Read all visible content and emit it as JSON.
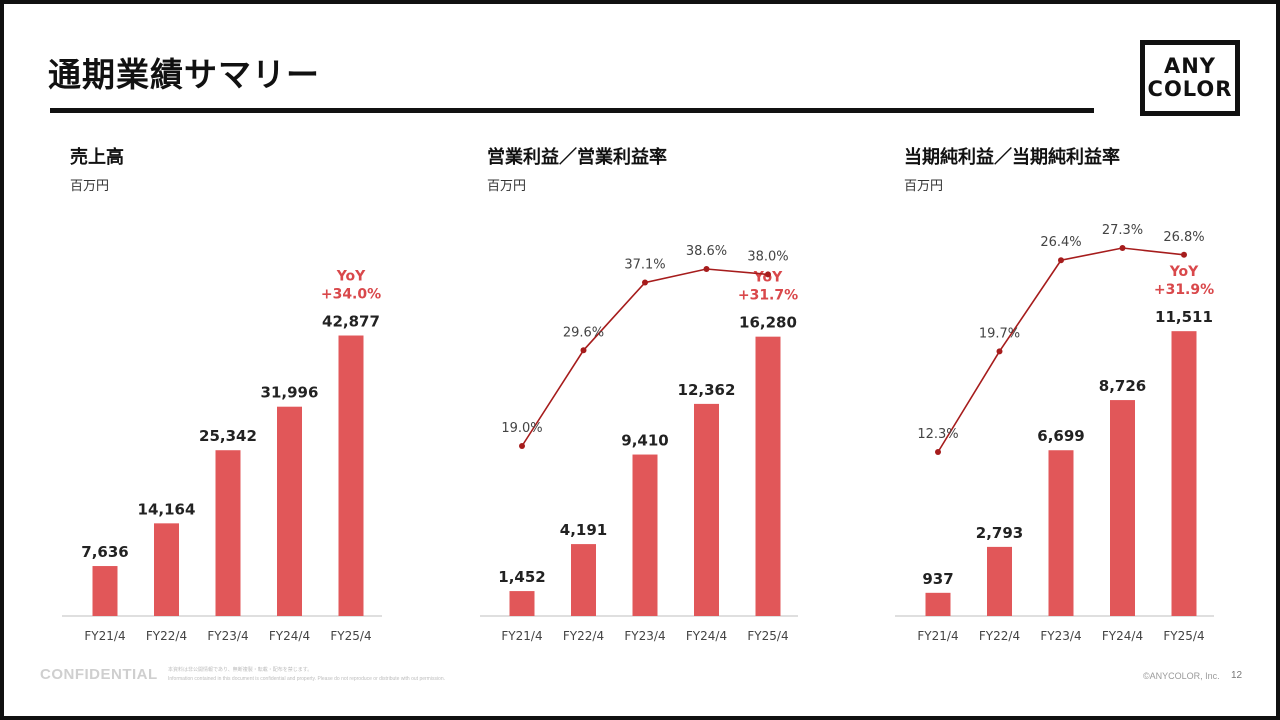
{
  "page": {
    "title": "通期業績サマリー",
    "logo_line1": "ANY",
    "logo_line2": "COLOR"
  },
  "footer": {
    "confidential": "CONFIDENTIAL",
    "note_jp": "本資料は非公開情報であり、無断複製・転載・配布を禁じます。",
    "note_en": "Information contained in this document is confidential and property. Please do not reproduce or distribute with out permission.",
    "copyright": "©ANYCOLOR, Inc.",
    "page_number": "12"
  },
  "colors": {
    "bar": "#e15759",
    "line": "#a61c1c",
    "yoy": "#d9484b",
    "axis": "#bfbfbf"
  },
  "chart_data": [
    {
      "type": "bar",
      "title": "売上高",
      "unit": "百万円",
      "categories": [
        "FY21/4",
        "FY22/4",
        "FY23/4",
        "FY24/4",
        "FY25/4"
      ],
      "values": [
        7636,
        14164,
        25342,
        31996,
        42877
      ],
      "value_labels": [
        "7,636",
        "14,164",
        "25,342",
        "31,996",
        "42,877"
      ],
      "yoy_label": "YoY",
      "yoy_value": "+34.0%",
      "ylim": [
        0,
        48000
      ]
    },
    {
      "type": "bar+line",
      "title": "営業利益／営業利益率",
      "unit": "百万円",
      "categories": [
        "FY21/4",
        "FY22/4",
        "FY23/4",
        "FY24/4",
        "FY25/4"
      ],
      "values": [
        1452,
        4191,
        9410,
        12362,
        16280
      ],
      "value_labels": [
        "1,452",
        "4,191",
        "9,410",
        "12,362",
        "16,280"
      ],
      "rates": [
        19.0,
        29.6,
        37.1,
        38.6,
        38.0
      ],
      "rate_labels": [
        "19.0%",
        "29.6%",
        "37.1%",
        "38.6%",
        "38.0%"
      ],
      "yoy_label": "YoY",
      "yoy_value": "+31.7%",
      "ylim": [
        0,
        18300
      ]
    },
    {
      "type": "bar+line",
      "title": "当期純利益／当期純利益率",
      "unit": "百万円",
      "categories": [
        "FY21/4",
        "FY22/4",
        "FY23/4",
        "FY24/4",
        "FY25/4"
      ],
      "values": [
        937,
        2793,
        6699,
        8726,
        11511
      ],
      "value_labels": [
        "937",
        "2,793",
        "6,699",
        "8,726",
        "11,511"
      ],
      "rates": [
        12.3,
        19.7,
        26.4,
        27.3,
        26.8
      ],
      "rate_labels": [
        "12.3%",
        "19.7%",
        "26.4%",
        "27.3%",
        "26.8%"
      ],
      "yoy_label": "YoY",
      "yoy_value": "+31.9%",
      "ylim": [
        0,
        12690
      ]
    }
  ]
}
